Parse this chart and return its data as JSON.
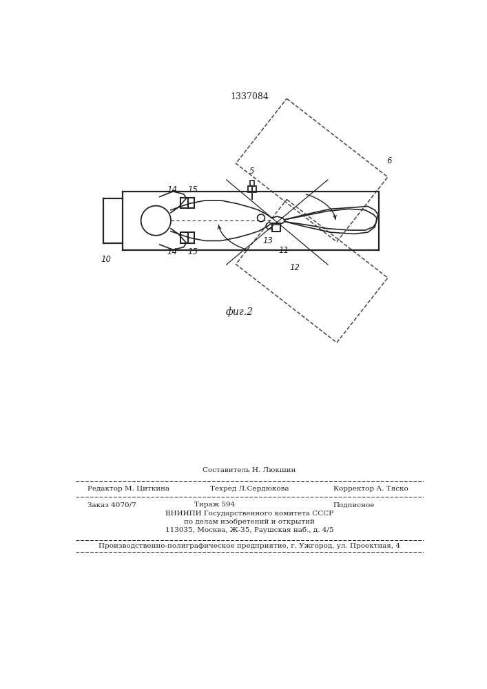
{
  "patent_number": "1337084",
  "fig_label": "фиг.2",
  "page_color": "#ffffff",
  "editor_line": "Редактор М. Циткина",
  "composer_line": "Составитель Н. Люкшин",
  "techred_line": "Техред Л.Сердюкова",
  "corrector_line": "Корректор А. Тяско",
  "order_line": "Заказ 4070/7",
  "tirazh_line": "Тираж 594",
  "podpisnoe_line": "Подписное",
  "vniiipi_line": "ВНИИПИ Государственного комитета СССР",
  "inventions_line": "по делам изобретений и открытий",
  "address_line": "113035, Москва, Ж-35, Раушская наб., д. 4/5",
  "production_line": "Производственно-полиграфическое предприятие, г. Ужгород, ул. Проектная, 4",
  "lc": "#222222",
  "tc": "#222222"
}
